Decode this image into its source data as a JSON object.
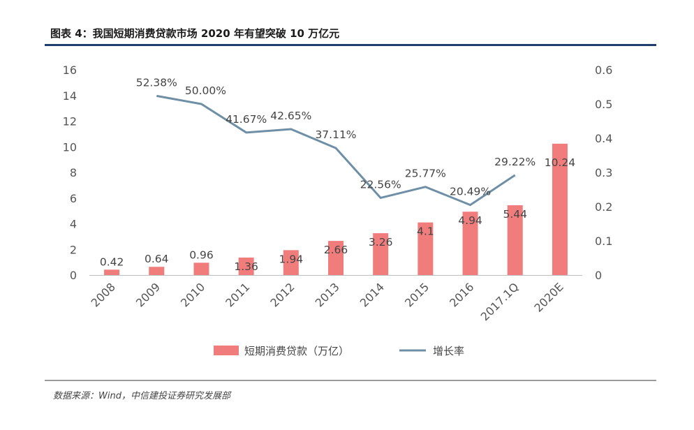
{
  "title": "图表 4：我国短期消费贷款市场 2020 年有望突破 10 万亿元",
  "source": "数据来源：Wind，中信建投证券研究发展部",
  "colors": {
    "bar": "#f07c7c",
    "line": "#6e8fa6",
    "rule": "#1f3d6b"
  },
  "chart_data": {
    "type": "bar",
    "categories": [
      "2008",
      "2009",
      "2010",
      "2011",
      "2012",
      "2013",
      "2014",
      "2015",
      "2016",
      "2017.1Q",
      "2020E"
    ],
    "series": [
      {
        "name": "短期消费贷款（万亿）",
        "type": "bar",
        "axis": "left",
        "values": [
          0.42,
          0.64,
          0.96,
          1.36,
          1.94,
          2.66,
          3.26,
          4.1,
          4.94,
          5.44,
          10.24
        ],
        "labels": [
          "0.42",
          "0.64",
          "0.96",
          "1.36",
          "1.94",
          "2.66",
          "3.26",
          "4.1",
          "4.94",
          "5.44",
          "10.24"
        ]
      },
      {
        "name": "增长率",
        "type": "line",
        "axis": "right",
        "values": [
          null,
          0.5238,
          0.5,
          0.4167,
          0.4265,
          0.3711,
          0.2256,
          0.2577,
          0.2049,
          0.2922,
          null
        ],
        "labels": [
          null,
          "52.38%",
          "50.00%",
          "41.67%",
          "42.65%",
          "37.11%",
          "22.56%",
          "25.77%",
          "20.49%",
          "29.22%",
          null
        ]
      }
    ],
    "y_left": {
      "min": 0,
      "max": 16,
      "ticks": [
        "0",
        "2",
        "4",
        "6",
        "8",
        "10",
        "12",
        "14",
        "16"
      ]
    },
    "y_right": {
      "min": 0,
      "max": 0.6,
      "ticks": [
        "0",
        "0.1",
        "0.2",
        "0.3",
        "0.4",
        "0.5",
        "0.6"
      ]
    },
    "grid": false,
    "legend_position": "bottom"
  }
}
